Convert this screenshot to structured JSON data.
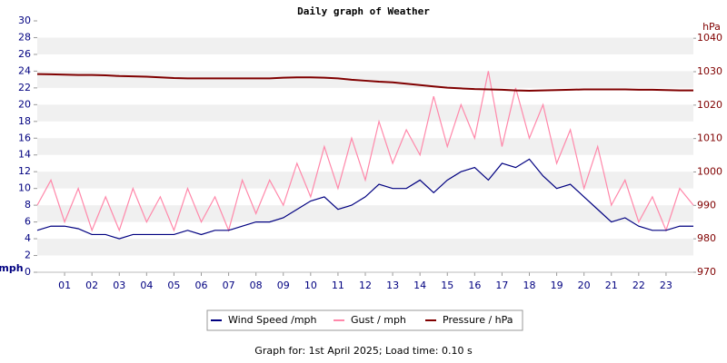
{
  "chart_data": {
    "type": "line",
    "title": "Daily graph of Weather",
    "y_label": "mph",
    "y2_label": "hPa",
    "footer": "Graph for: 1st April 2025; Load time: 0.10 s",
    "xlim": [
      0,
      24
    ],
    "xticks": [
      {
        "value": 1,
        "label": "01"
      },
      {
        "value": 2,
        "label": "02"
      },
      {
        "value": 3,
        "label": "03"
      },
      {
        "value": 4,
        "label": "04"
      },
      {
        "value": 5,
        "label": "05"
      },
      {
        "value": 6,
        "label": "06"
      },
      {
        "value": 7,
        "label": "07"
      },
      {
        "value": 8,
        "label": "08"
      },
      {
        "value": 9,
        "label": "09"
      },
      {
        "value": 10,
        "label": "10"
      },
      {
        "value": 11,
        "label": "11"
      },
      {
        "value": 12,
        "label": "12"
      },
      {
        "value": 13,
        "label": "13"
      },
      {
        "value": 14,
        "label": "14"
      },
      {
        "value": 15,
        "label": "15"
      },
      {
        "value": 16,
        "label": "16"
      },
      {
        "value": 17,
        "label": "17"
      },
      {
        "value": 18,
        "label": "18"
      },
      {
        "value": 19,
        "label": "19"
      },
      {
        "value": 20,
        "label": "20"
      },
      {
        "value": 21,
        "label": "21"
      },
      {
        "value": 22,
        "label": "22"
      },
      {
        "value": 23,
        "label": "23"
      }
    ],
    "ylim": [
      0,
      30
    ],
    "yticks": [
      0,
      2,
      4,
      6,
      8,
      10,
      12,
      14,
      16,
      18,
      20,
      22,
      24,
      26,
      28,
      30
    ],
    "y2lim": [
      970,
      1045.2
    ],
    "y2ticks": [
      970,
      980,
      990,
      1000,
      1010,
      1020,
      1030,
      1040
    ],
    "grid": true,
    "x": [
      0,
      0.5,
      1,
      1.5,
      2,
      2.5,
      3,
      3.5,
      4,
      4.5,
      5,
      5.5,
      6,
      6.5,
      7,
      7.5,
      8,
      8.5,
      9,
      9.5,
      10,
      10.5,
      11,
      11.5,
      12,
      12.5,
      13,
      13.5,
      14,
      14.5,
      15,
      15.5,
      16,
      16.5,
      17,
      17.5,
      18,
      18.5,
      19,
      19.5,
      20,
      20.5,
      21,
      21.5,
      22,
      22.5,
      23,
      23.5,
      24
    ],
    "series": [
      {
        "name": "Wind Speed /mph",
        "color": "#000080",
        "values": [
          5,
          5.5,
          5.5,
          5.2,
          4.5,
          4.5,
          4,
          4.5,
          4.5,
          4.5,
          4.5,
          5,
          4.5,
          5,
          5,
          5.5,
          6,
          6,
          6.5,
          7.5,
          8.5,
          9,
          7.5,
          8,
          9,
          10.5,
          10,
          10,
          11,
          9.5,
          11,
          12,
          12.5,
          11,
          13,
          12.5,
          13.5,
          11.5,
          10,
          10.5,
          9,
          7.5,
          6,
          6.5,
          5.5,
          5,
          5,
          5.5,
          5.5
        ]
      },
      {
        "name": "Gust / mph",
        "color": "#ff88aa",
        "values": [
          8,
          11,
          6,
          10,
          5,
          9,
          5,
          10,
          6,
          9,
          5,
          10,
          6,
          9,
          5,
          11,
          7,
          11,
          8,
          13,
          9,
          15,
          10,
          16,
          11,
          18,
          13,
          17,
          14,
          21,
          15,
          20,
          16,
          24,
          15,
          22,
          16,
          20,
          13,
          17,
          10,
          15,
          8,
          11,
          6,
          9,
          5,
          10,
          8
        ]
      },
      {
        "name": "Pressure / hPa",
        "color": "#800000",
        "axis": "y2",
        "values": [
          1029.3,
          1029.2,
          1029.1,
          1029,
          1029,
          1028.9,
          1028.7,
          1028.6,
          1028.5,
          1028.3,
          1028.1,
          1028,
          1028,
          1028,
          1028,
          1028,
          1028,
          1028,
          1028.2,
          1028.3,
          1028.3,
          1028.2,
          1028,
          1027.6,
          1027.3,
          1027,
          1026.8,
          1026.4,
          1026,
          1025.6,
          1025.2,
          1025,
          1024.8,
          1024.7,
          1024.6,
          1024.4,
          1024.3,
          1024.4,
          1024.5,
          1024.6,
          1024.7,
          1024.7,
          1024.7,
          1024.7,
          1024.6,
          1024.6,
          1024.5,
          1024.4,
          1024.4
        ]
      }
    ]
  }
}
